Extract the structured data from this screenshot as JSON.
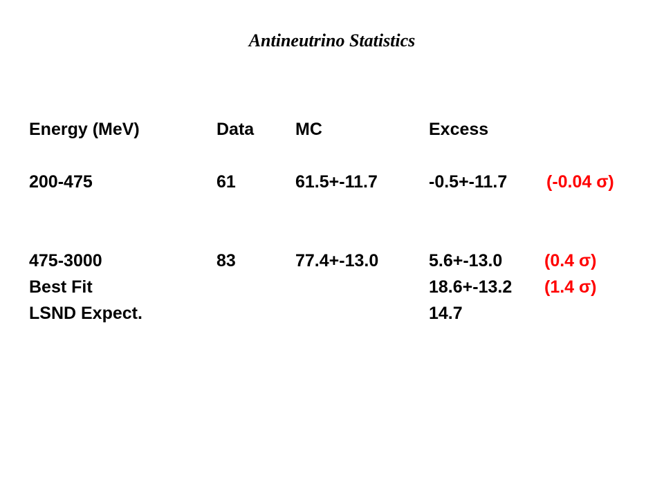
{
  "title": "Antineutrino Statistics",
  "table": {
    "header": {
      "energy": "Energy (MeV)",
      "data": "Data",
      "mc": "MC",
      "excess": "Excess"
    },
    "rows": [
      {
        "energy": "200-475",
        "data": "61",
        "mc": "61.5+-11.7",
        "excess": "-0.5+-11.7",
        "significance": "(-0.04 σ)"
      },
      {
        "energy": "475-3000",
        "data": "83",
        "mc": "77.4+-13.0",
        "excess": "5.6+-13.0",
        "significance": "(0.4 σ)"
      },
      {
        "energy": "Best Fit",
        "excess": "18.6+-13.2",
        "significance": "(1.4 σ)"
      },
      {
        "energy": "LSND Expect.",
        "excess": "14.7"
      }
    ]
  }
}
